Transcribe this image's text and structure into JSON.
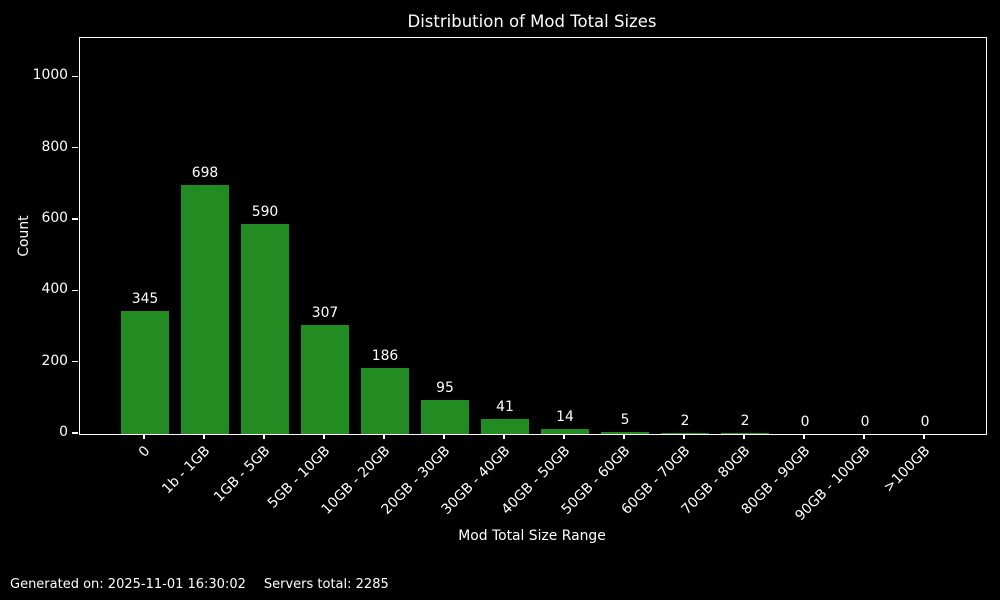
{
  "chart_data": {
    "type": "bar",
    "title": "Distribution of Mod Total Sizes",
    "xlabel": "Mod Total Size Range",
    "ylabel": "Count",
    "categories": [
      "0",
      "1b - 1GB",
      "1GB - 5GB",
      "5GB - 10GB",
      "10GB - 20GB",
      "20GB - 30GB",
      "30GB - 40GB",
      "40GB - 50GB",
      "50GB - 60GB",
      "60GB - 70GB",
      "70GB - 80GB",
      "80GB - 90GB",
      "90GB - 100GB",
      ">100GB"
    ],
    "values": [
      345,
      698,
      590,
      307,
      186,
      95,
      41,
      14,
      5,
      2,
      2,
      0,
      0,
      0
    ],
    "yticks": [
      0,
      200,
      400,
      600,
      800,
      1000
    ],
    "ylim": [
      0,
      1110
    ],
    "bar_color": "#228B22",
    "background_color": "#000000",
    "text_color": "#ffffff",
    "grid": false,
    "legend_position": "none",
    "value_labels_shown": true
  },
  "footer": {
    "generated_label": "Generated on: 2025-11-01 16:30:02",
    "servers_label": "Servers total: 2285"
  }
}
